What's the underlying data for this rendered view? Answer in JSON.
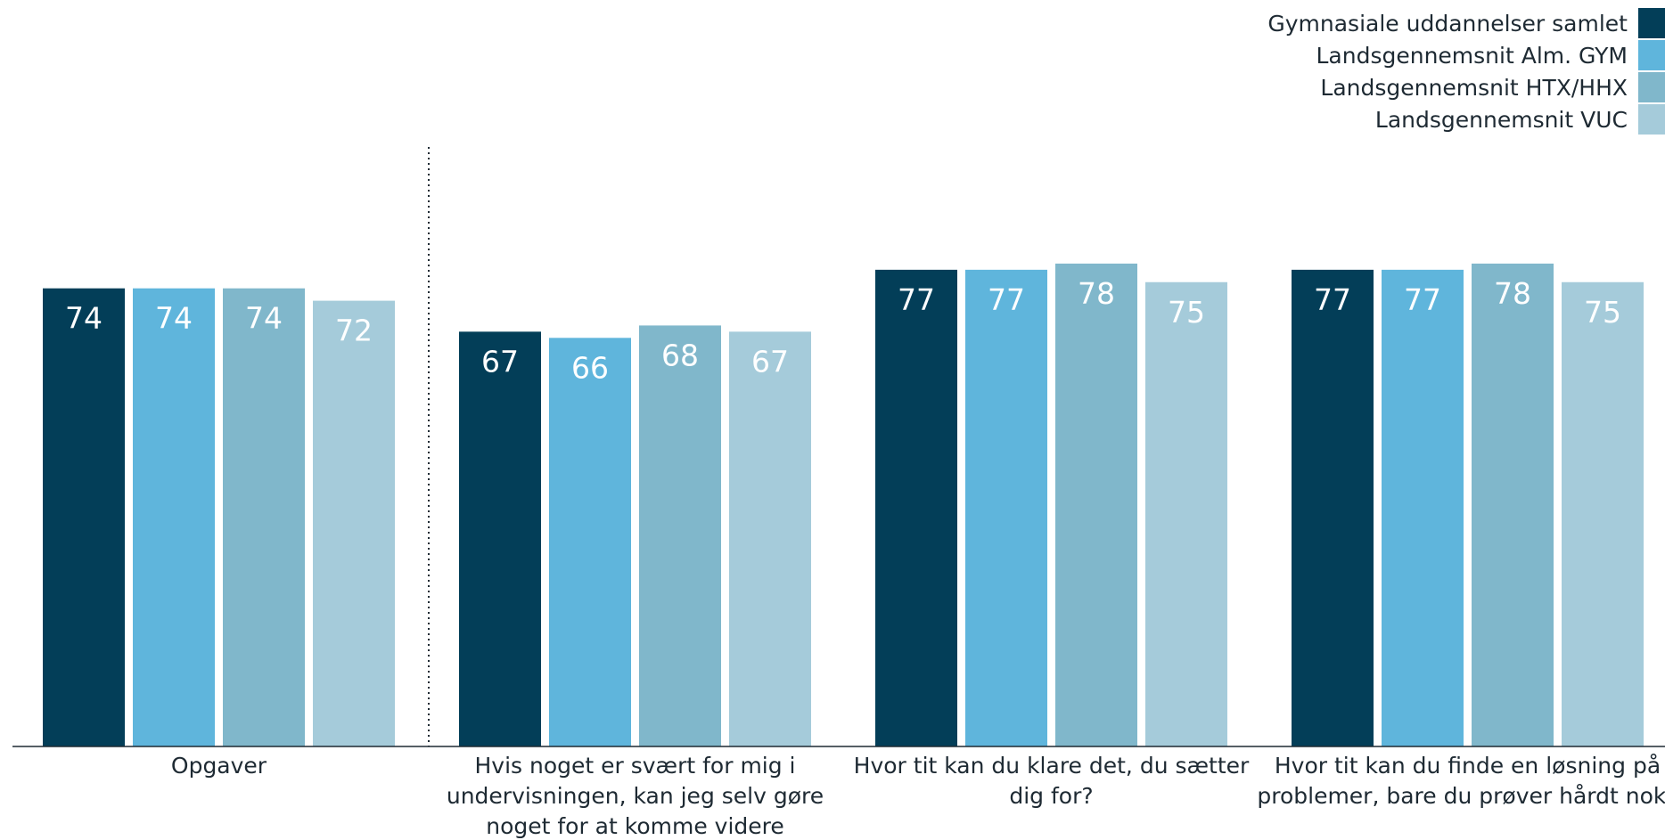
{
  "chart_data": {
    "type": "bar",
    "categories": [
      [
        "Opgaver"
      ],
      [
        "Hvis noget er svært for mig i",
        "undervisningen, kan jeg selv gøre",
        "noget for at komme videre"
      ],
      [
        "Hvor tit kan du klare det, du sætter",
        "dig for?"
      ],
      [
        "Hvor tit kan du finde en løsning på",
        "problemer, bare du prøver hårdt nok?"
      ]
    ],
    "series": [
      {
        "name": "Gymnasiale uddannelser samlet",
        "color": "#033e58",
        "values": [
          74,
          67,
          77,
          77
        ]
      },
      {
        "name": "Landsgennemsnit Alm. GYM",
        "color": "#5fb5dc",
        "values": [
          74,
          66,
          77,
          77
        ]
      },
      {
        "name": "Landsgennemsnit HTX/HHX",
        "color": "#80b7cb",
        "values": [
          74,
          68,
          78,
          78
        ]
      },
      {
        "name": "Landsgennemsnit VUC",
        "color": "#a5cbda",
        "values": [
          72,
          67,
          75,
          75
        ]
      }
    ],
    "ylim": [
      0,
      100
    ],
    "legend_position": "top-right",
    "grid": false
  }
}
